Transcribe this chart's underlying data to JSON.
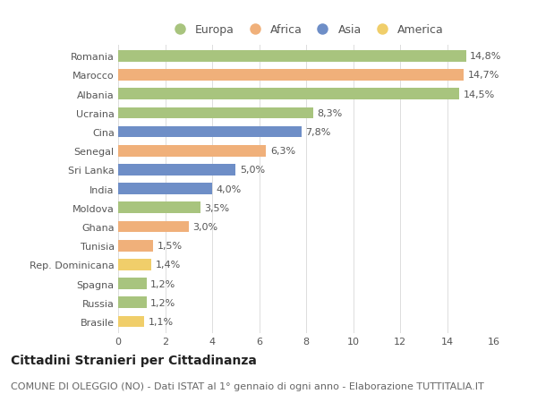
{
  "categories": [
    "Romania",
    "Marocco",
    "Albania",
    "Ucraina",
    "Cina",
    "Senegal",
    "Sri Lanka",
    "India",
    "Moldova",
    "Ghana",
    "Tunisia",
    "Rep. Dominicana",
    "Spagna",
    "Russia",
    "Brasile"
  ],
  "values": [
    14.8,
    14.7,
    14.5,
    8.3,
    7.8,
    6.3,
    5.0,
    4.0,
    3.5,
    3.0,
    1.5,
    1.4,
    1.2,
    1.2,
    1.1
  ],
  "labels": [
    "14,8%",
    "14,7%",
    "14,5%",
    "8,3%",
    "7,8%",
    "6,3%",
    "5,0%",
    "4,0%",
    "3,5%",
    "3,0%",
    "1,5%",
    "1,4%",
    "1,2%",
    "1,2%",
    "1,1%"
  ],
  "continents": [
    "Europa",
    "Africa",
    "Europa",
    "Europa",
    "Asia",
    "Africa",
    "Asia",
    "Asia",
    "Europa",
    "Africa",
    "Africa",
    "America",
    "Europa",
    "Europa",
    "America"
  ],
  "continent_colors": {
    "Europa": "#a8c47e",
    "Africa": "#f0b07a",
    "Asia": "#6e8ec7",
    "America": "#f0ce6a"
  },
  "legend_order": [
    "Europa",
    "Africa",
    "Asia",
    "America"
  ],
  "title": "Cittadini Stranieri per Cittadinanza",
  "subtitle": "COMUNE DI OLEGGIO (NO) - Dati ISTAT al 1° gennaio di ogni anno - Elaborazione TUTTITALIA.IT",
  "xlim": [
    0,
    16
  ],
  "xticks": [
    0,
    2,
    4,
    6,
    8,
    10,
    12,
    14,
    16
  ],
  "background_color": "#ffffff",
  "grid_color": "#dddddd",
  "bar_height": 0.6,
  "title_fontsize": 10,
  "subtitle_fontsize": 8,
  "label_fontsize": 8,
  "tick_fontsize": 8,
  "legend_fontsize": 9
}
